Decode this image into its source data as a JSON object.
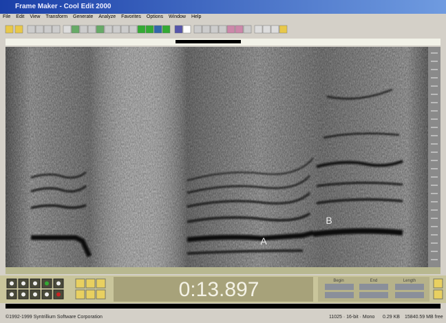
{
  "window": {
    "title": "Frame Maker - Cool Edit 2000"
  },
  "menu": [
    "File",
    "Edit",
    "View",
    "Transform",
    "Generate",
    "Analyze",
    "Favorites",
    "Options",
    "Window",
    "Help"
  ],
  "spectrogram": {
    "markers": [
      "A",
      "B"
    ]
  },
  "transport": {
    "time": "0:13.897"
  },
  "selection": {
    "headers": [
      "Begin",
      "End",
      "Length"
    ]
  },
  "status": [
    "©1992-1999 Syntrillium Software Corporation",
    "11025 · 16-bit · Mono",
    "0.29 KB",
    "15840.59 MB free"
  ]
}
